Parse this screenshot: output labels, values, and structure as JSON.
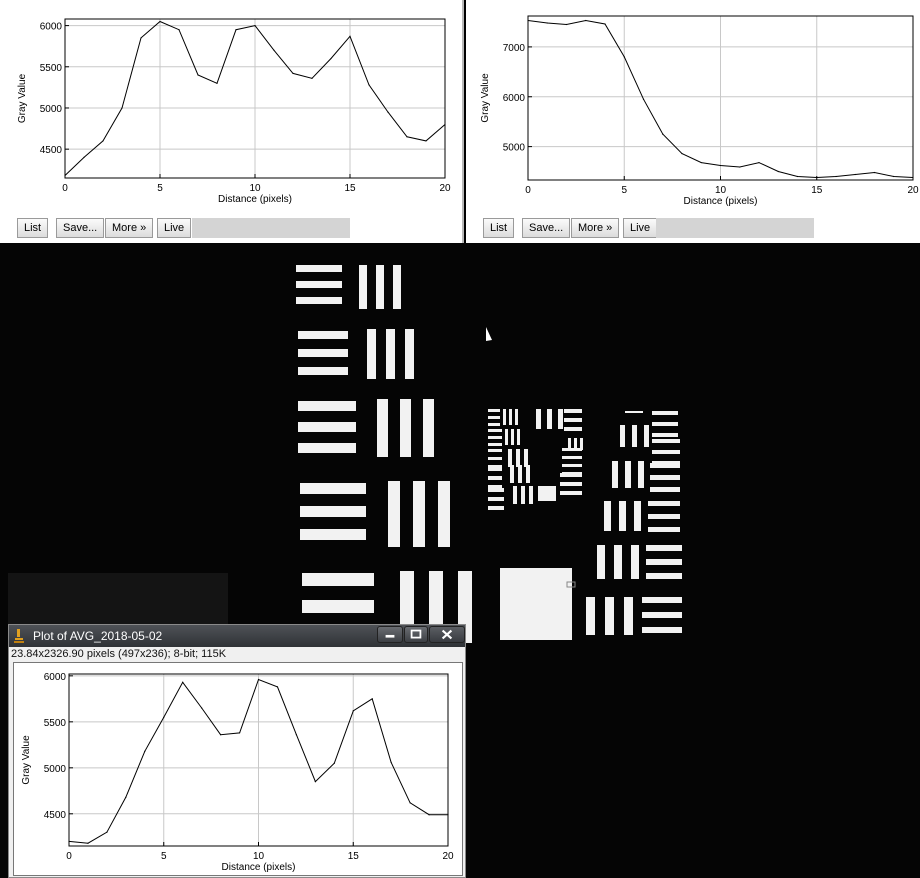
{
  "top_left_plot": {
    "buttons": {
      "list": "List",
      "save": "Save...",
      "more": "More »",
      "live": "Live"
    },
    "chart_data": {
      "type": "line",
      "xlabel": "Distance (pixels)",
      "ylabel": "Gray Value",
      "x_ticks": [
        0,
        5,
        10,
        15,
        20
      ],
      "y_ticks": [
        4500,
        5000,
        5500,
        6000
      ],
      "xlim": [
        0,
        20
      ],
      "ylim": [
        4150,
        6080
      ],
      "grid": true,
      "series": [
        {
          "x": [
            0,
            1,
            2,
            3,
            4,
            5,
            6,
            7,
            8,
            9,
            10,
            11,
            12,
            13,
            14,
            15,
            16,
            17,
            18,
            19,
            20
          ],
          "values": [
            4180,
            4400,
            4600,
            5000,
            5850,
            6050,
            5950,
            5400,
            5300,
            5950,
            6000,
            5700,
            5420,
            5360,
            5600,
            5870,
            5280,
            4950,
            4650,
            4600,
            4800
          ]
        }
      ]
    }
  },
  "top_right_plot": {
    "buttons": {
      "list": "List",
      "save": "Save...",
      "more": "More »",
      "live": "Live"
    },
    "chart_data": {
      "type": "line",
      "xlabel": "Distance (pixels)",
      "ylabel": "Gray Value",
      "x_ticks": [
        0,
        5,
        10,
        15,
        20
      ],
      "y_ticks": [
        5000,
        6000,
        7000
      ],
      "xlim": [
        0,
        20
      ],
      "ylim": [
        4330,
        7620
      ],
      "grid": true,
      "series": [
        {
          "x": [
            0,
            1,
            2,
            3,
            4,
            5,
            6,
            7,
            8,
            9,
            10,
            11,
            12,
            13,
            14,
            15,
            16,
            17,
            18,
            19,
            20
          ],
          "values": [
            7530,
            7480,
            7450,
            7530,
            7460,
            6800,
            5950,
            5250,
            4860,
            4680,
            4620,
            4590,
            4680,
            4500,
            4400,
            4380,
            4400,
            4440,
            4480,
            4400,
            4380
          ]
        }
      ]
    }
  },
  "plot_window": {
    "title": "Plot of AVG_2018-05-02",
    "info": "23.84x2326.90 pixels (497x236); 8-bit; 115K",
    "chart_data": {
      "type": "line",
      "xlabel": "Distance (pixels)",
      "ylabel": "Gray Value",
      "x_ticks": [
        0,
        5,
        10,
        15,
        20
      ],
      "y_ticks": [
        4500,
        5000,
        5500,
        6000
      ],
      "xlim": [
        0,
        20
      ],
      "ylim": [
        4150,
        6020
      ],
      "grid": true,
      "series": [
        {
          "x": [
            0,
            1,
            2,
            3,
            4,
            5,
            6,
            7,
            8,
            9,
            10,
            11,
            12,
            13,
            14,
            15,
            16,
            17,
            18,
            19,
            20
          ],
          "values": [
            4200,
            4180,
            4300,
            4680,
            5180,
            5550,
            5930,
            5650,
            5360,
            5380,
            5960,
            5880,
            5360,
            4850,
            5050,
            5620,
            5750,
            5060,
            4620,
            4490,
            4490
          ]
        }
      ]
    }
  },
  "image_canvas": {
    "description_icon": "resolution-target-image"
  }
}
